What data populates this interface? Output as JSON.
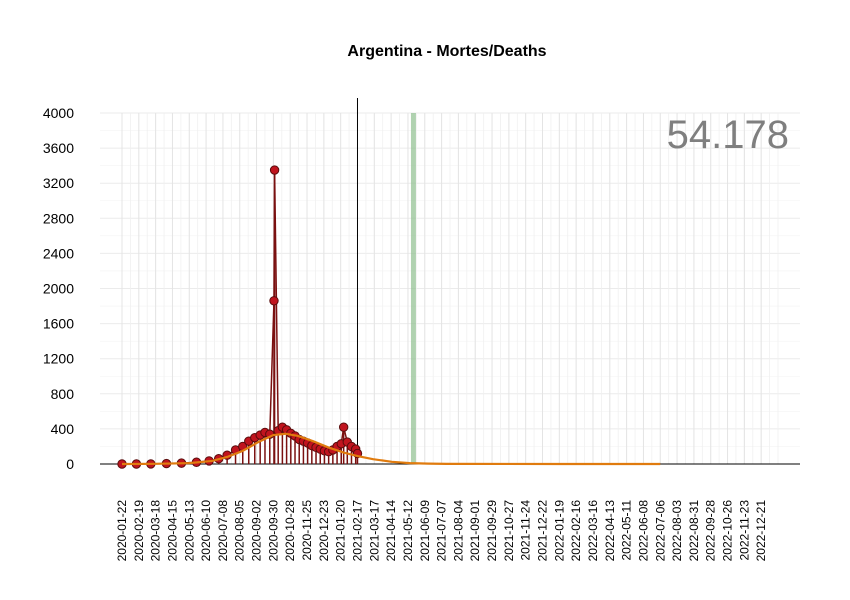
{
  "chart_data": {
    "type": "line",
    "title": "Argentina - Mortes/Deaths",
    "annotation_total": "54.178",
    "xlabel": "",
    "ylabel": "",
    "ylim": [
      0,
      4000
    ],
    "y_ticks": [
      0,
      400,
      800,
      1200,
      1600,
      2000,
      2400,
      2800,
      3200,
      3600,
      4000
    ],
    "x_range": [
      "2020-01-22",
      "2023-01-18"
    ],
    "x_tick_labels": [
      "2020-01-22",
      "2020-02-19",
      "2020-03-18",
      "2020-04-15",
      "2020-05-13",
      "2020-06-10",
      "2020-07-08",
      "2020-08-05",
      "2020-09-02",
      "2020-09-30",
      "2020-10-28",
      "2020-11-25",
      "2020-12-23",
      "2021-01-20",
      "2021-02-17",
      "2021-03-17",
      "2021-04-14",
      "2021-05-12",
      "2021-06-09",
      "2021-07-07",
      "2021-08-04",
      "2021-09-01",
      "2021-09-29",
      "2021-10-27",
      "2021-11-24",
      "2021-12-22",
      "2022-01-19",
      "2022-02-16",
      "2022-03-16",
      "2022-04-13",
      "2022-05-11",
      "2022-06-08",
      "2022-07-06",
      "2022-08-03",
      "2022-08-31",
      "2022-09-28",
      "2022-10-26",
      "2022-11-23",
      "2022-12-21"
    ],
    "last_observed_date": "2021-02-17",
    "highlight_band": [
      "2021-05-17",
      "2021-05-22"
    ],
    "grid": true,
    "legend": "none",
    "series": [
      {
        "kind": "daily_deaths",
        "color": "#7a1010",
        "marker_color": "#c0141e",
        "x": [
          "2020-01-22",
          "2020-02-15",
          "2020-03-10",
          "2020-04-05",
          "2020-04-30",
          "2020-05-25",
          "2020-06-15",
          "2020-07-01",
          "2020-07-15",
          "2020-07-29",
          "2020-08-10",
          "2020-08-20",
          "2020-08-30",
          "2020-09-08",
          "2020-09-16",
          "2020-09-24",
          "2020-10-01",
          "2020-10-02",
          "2020-10-08",
          "2020-10-15",
          "2020-10-22",
          "2020-10-29",
          "2020-11-05",
          "2020-11-12",
          "2020-11-19",
          "2020-11-26",
          "2020-12-03",
          "2020-12-10",
          "2020-12-17",
          "2020-12-24",
          "2020-12-31",
          "2021-01-07",
          "2021-01-14",
          "2021-01-21",
          "2021-01-25",
          "2021-01-31",
          "2021-02-07",
          "2021-02-14",
          "2021-02-17"
        ],
        "y": [
          0,
          0,
          1,
          5,
          10,
          20,
          35,
          60,
          100,
          160,
          200,
          260,
          300,
          330,
          360,
          340,
          1860,
          3350,
          380,
          420,
          390,
          350,
          320,
          280,
          260,
          240,
          210,
          190,
          170,
          150,
          140,
          160,
          200,
          230,
          420,
          250,
          200,
          170,
          120
        ]
      },
      {
        "kind": "trend",
        "color": "#e07b0e",
        "x": [
          "2020-01-22",
          "2020-03-18",
          "2020-05-13",
          "2020-06-20",
          "2020-07-15",
          "2020-08-10",
          "2020-09-05",
          "2020-09-30",
          "2020-10-20",
          "2020-11-10",
          "2020-12-05",
          "2020-12-30",
          "2021-01-25",
          "2021-02-17",
          "2021-03-15",
          "2021-04-15",
          "2021-05-15",
          "2021-06-15",
          "2021-07-15",
          "2022-01-19",
          "2022-07-06"
        ],
        "y": [
          0,
          2,
          10,
          35,
          80,
          150,
          250,
          330,
          345,
          320,
          260,
          190,
          130,
          90,
          55,
          25,
          10,
          4,
          1,
          0,
          0
        ]
      }
    ]
  }
}
